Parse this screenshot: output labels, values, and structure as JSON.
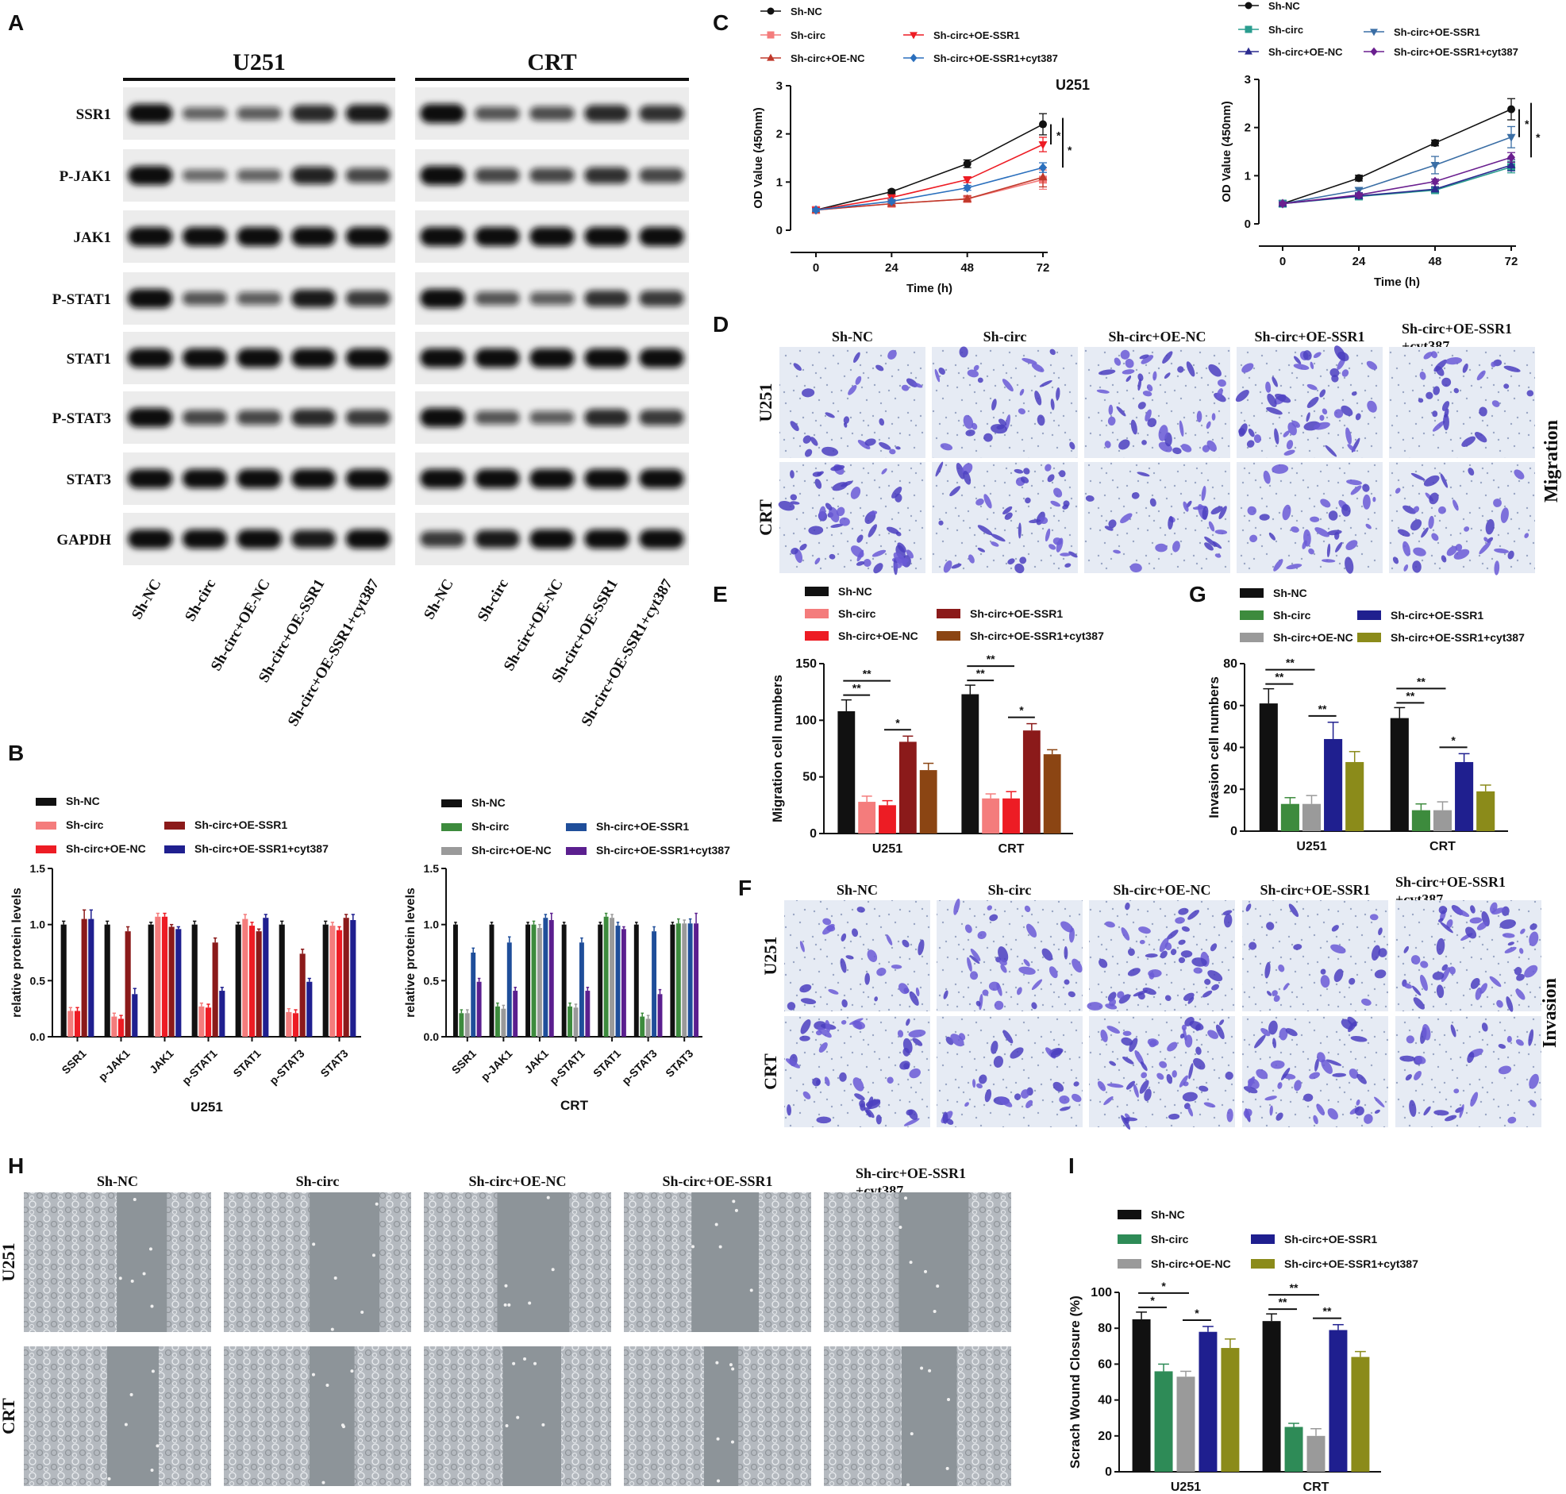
{
  "panel_letters": [
    "A",
    "B",
    "C",
    "D",
    "E",
    "F",
    "G",
    "H",
    "I"
  ],
  "colors": {
    "black": "#111111",
    "pink": "#f47c7c",
    "red": "#ed1c24",
    "darkred": "#8b1a1a",
    "navy": "#1f1f8f",
    "brown": "#8b4513",
    "green": "#3d8b3d",
    "grey": "#9a9a9a",
    "blue": "#1f4e9a",
    "purple": "#5b1f8f",
    "olive": "#8b8b1a",
    "teal": "#2a9d8f",
    "mgreen": "#2e8b57"
  },
  "blot": {
    "cell_lines": [
      "U251",
      "CRT"
    ],
    "proteins": [
      "SSR1",
      "P-JAK1",
      "JAK1",
      "P-STAT1",
      "STAT1",
      "P-STAT3",
      "STAT3",
      "GAPDH"
    ],
    "lanes": [
      "Sh-NC",
      "Sh-circ",
      "Sh-circ+OE-NC",
      "Sh-circ+OE-SSR1",
      "Sh-circ+OE-SSR1+cyt387"
    ],
    "intensity_u251": [
      [
        1,
        0.4,
        0.45,
        0.8,
        0.9
      ],
      [
        1,
        0.35,
        0.4,
        0.85,
        0.6
      ],
      [
        1,
        1,
        1,
        1,
        1
      ],
      [
        1,
        0.5,
        0.45,
        0.9,
        0.7
      ],
      [
        1,
        1,
        1,
        1,
        1
      ],
      [
        1,
        0.6,
        0.6,
        0.8,
        0.7
      ],
      [
        1,
        1,
        1,
        1,
        1
      ],
      [
        1,
        1,
        1,
        0.9,
        1
      ]
    ],
    "intensity_crt": [
      [
        1,
        0.5,
        0.55,
        0.8,
        0.75
      ],
      [
        1,
        0.6,
        0.6,
        0.75,
        0.6
      ],
      [
        1,
        1,
        1,
        1,
        1
      ],
      [
        1,
        0.5,
        0.45,
        0.75,
        0.7
      ],
      [
        1,
        1,
        1,
        1,
        1
      ],
      [
        1,
        0.5,
        0.45,
        0.8,
        0.7
      ],
      [
        1,
        1,
        1,
        1,
        1
      ],
      [
        0.7,
        0.9,
        1,
        1,
        1
      ]
    ]
  },
  "chart_data": [
    {
      "id": "B1",
      "type": "bar",
      "xlabel": "U251",
      "ylabel": "relative protein levels",
      "ylim": [
        0,
        1.5
      ],
      "yticks": [
        "0.0",
        "0.5",
        "1.0",
        "1.5"
      ],
      "categories": [
        "SSR1",
        "p-JAK1",
        "JAK1",
        "p-STAT1",
        "STAT1",
        "p-STAT3",
        "STAT3"
      ],
      "legend": [
        "Sh-NC",
        "Sh-circ",
        "Sh-circ+OE-NC",
        "Sh-circ+OE-SSR1",
        "Sh-circ+OE-SSR1+cyt387"
      ],
      "series": [
        {
          "name": "Sh-NC",
          "color": "#111111",
          "values": [
            1.0,
            1.0,
            1.0,
            1.0,
            1.0,
            1.0,
            1.0
          ],
          "err": [
            0.03,
            0.03,
            0.02,
            0.03,
            0.02,
            0.03,
            0.03
          ]
        },
        {
          "name": "Sh-circ",
          "color": "#f47c7c",
          "values": [
            0.23,
            0.18,
            1.07,
            0.27,
            1.05,
            0.22,
            0.99
          ],
          "err": [
            0.03,
            0.03,
            0.03,
            0.03,
            0.04,
            0.03,
            0.03
          ]
        },
        {
          "name": "Sh-circ+OE-NC",
          "color": "#ed1c24",
          "values": [
            0.23,
            0.16,
            1.07,
            0.26,
            0.99,
            0.21,
            0.95
          ],
          "err": [
            0.03,
            0.03,
            0.03,
            0.03,
            0.03,
            0.03,
            0.03
          ]
        },
        {
          "name": "Sh-circ+OE-SSR1",
          "color": "#8b1a1a",
          "values": [
            1.05,
            0.94,
            0.98,
            0.84,
            0.94,
            0.74,
            1.06
          ],
          "err": [
            0.08,
            0.04,
            0.02,
            0.04,
            0.02,
            0.04,
            0.03
          ]
        },
        {
          "name": "Sh-circ+OE-SSR1+cyt387",
          "color": "#1f1f8f",
          "values": [
            1.05,
            0.38,
            0.96,
            0.41,
            1.06,
            0.49,
            1.04
          ],
          "err": [
            0.08,
            0.05,
            0.02,
            0.03,
            0.03,
            0.03,
            0.05
          ]
        }
      ]
    },
    {
      "id": "B2",
      "type": "bar",
      "xlabel": "CRT",
      "ylabel": "relative protein levels",
      "ylim": [
        0,
        1.5
      ],
      "yticks": [
        "0.0",
        "0.5",
        "1.0",
        "1.5"
      ],
      "categories": [
        "SSR1",
        "p-JAK1",
        "JAK1",
        "p-STAT1",
        "STAT1",
        "p-STAT3",
        "STAT3"
      ],
      "legend": [
        "Sh-NC",
        "Sh-circ",
        "Sh-circ+OE-NC",
        "Sh-circ+OE-SSR1",
        "Sh-circ+OE-SSR1+cyt387"
      ],
      "series": [
        {
          "name": "Sh-NC",
          "color": "#111111",
          "values": [
            1.0,
            1.0,
            1.0,
            1.0,
            1.0,
            1.0,
            1.0
          ],
          "err": [
            0.02,
            0.02,
            0.02,
            0.02,
            0.02,
            0.02,
            0.02
          ]
        },
        {
          "name": "Sh-circ",
          "color": "#3d8b3d",
          "values": [
            0.21,
            0.27,
            1.0,
            0.27,
            1.07,
            0.18,
            1.01
          ],
          "err": [
            0.03,
            0.03,
            0.03,
            0.03,
            0.03,
            0.03,
            0.04
          ]
        },
        {
          "name": "Sh-circ+OE-NC",
          "color": "#9a9a9a",
          "values": [
            0.21,
            0.25,
            0.97,
            0.26,
            1.06,
            0.16,
            1.01
          ],
          "err": [
            0.03,
            0.03,
            0.03,
            0.03,
            0.03,
            0.03,
            0.03
          ]
        },
        {
          "name": "Sh-circ+OE-SSR1",
          "color": "#1f4e9a",
          "values": [
            0.75,
            0.84,
            1.06,
            0.84,
            0.99,
            0.94,
            1.01
          ],
          "err": [
            0.04,
            0.05,
            0.03,
            0.04,
            0.03,
            0.04,
            0.04
          ]
        },
        {
          "name": "Sh-circ+OE-SSR1+cyt387",
          "color": "#5b1f8f",
          "values": [
            0.49,
            0.41,
            1.04,
            0.41,
            0.96,
            0.38,
            1.01
          ],
          "err": [
            0.03,
            0.03,
            0.06,
            0.03,
            0.02,
            0.04,
            0.09
          ]
        }
      ]
    },
    {
      "id": "C1",
      "type": "line",
      "title": "U251",
      "xlabel": "Time (h)",
      "ylabel": "OD Value (450nm)",
      "x": [
        0,
        24,
        48,
        72
      ],
      "xlim": [
        0,
        72
      ],
      "ylim": [
        0,
        3
      ],
      "yticks": [
        "0",
        "1",
        "2",
        "3"
      ],
      "xticks": [
        "0",
        "24",
        "48",
        "72"
      ],
      "legend": [
        "Sh-NC",
        "Sh-circ",
        "Sh-circ+OE-NC",
        "Sh-circ+OE-SSR1",
        "Sh-circ+OE-SSR1+cyt387"
      ],
      "series": [
        {
          "name": "Sh-NC",
          "color": "#111111",
          "marker": "circle",
          "values": [
            0.42,
            0.8,
            1.38,
            2.2
          ],
          "err": [
            0.03,
            0.04,
            0.08,
            0.22
          ]
        },
        {
          "name": "Sh-circ",
          "color": "#f47c7c",
          "marker": "square",
          "values": [
            0.42,
            0.55,
            0.65,
            1.05
          ],
          "err": [
            0.03,
            0.04,
            0.06,
            0.2
          ]
        },
        {
          "name": "Sh-circ+OE-NC",
          "color": "#c0392b",
          "marker": "triangle-up",
          "values": [
            0.42,
            0.55,
            0.65,
            1.1
          ],
          "err": [
            0.03,
            0.04,
            0.06,
            0.2
          ]
        },
        {
          "name": "Sh-circ+OE-SSR1",
          "color": "#ed1c24",
          "marker": "triangle-down",
          "values": [
            0.42,
            0.68,
            1.05,
            1.78
          ],
          "err": [
            0.03,
            0.05,
            0.06,
            0.15
          ]
        },
        {
          "name": "Sh-circ+OE-SSR1+cyt387",
          "color": "#2a6fbd",
          "marker": "diamond",
          "values": [
            0.42,
            0.6,
            0.88,
            1.3
          ],
          "err": [
            0.03,
            0.04,
            0.05,
            0.1
          ]
        }
      ],
      "sig": [
        "*",
        "*"
      ]
    },
    {
      "id": "C2",
      "type": "line",
      "xlabel": "Time (h)",
      "ylabel": "OD Value (450nm)",
      "x": [
        0,
        24,
        48,
        72
      ],
      "xlim": [
        0,
        72
      ],
      "ylim": [
        0,
        3
      ],
      "yticks": [
        "0",
        "1",
        "2",
        "3"
      ],
      "xticks": [
        "0",
        "24",
        "48",
        "72"
      ],
      "legend": [
        "Sh-NC",
        "Sh-circ",
        "Sh-circ+OE-NC",
        "Sh-circ+OE-SSR1",
        "Sh-circ+OE-SSR1+cyt387"
      ],
      "series": [
        {
          "name": "Sh-NC",
          "color": "#111111",
          "marker": "circle",
          "values": [
            0.42,
            0.95,
            1.68,
            2.38
          ],
          "err": [
            0.03,
            0.06,
            0.06,
            0.22
          ]
        },
        {
          "name": "Sh-circ",
          "color": "#2a9d8f",
          "marker": "square",
          "values": [
            0.42,
            0.57,
            0.7,
            1.18
          ],
          "err": [
            0.03,
            0.04,
            0.05,
            0.12
          ]
        },
        {
          "name": "Sh-circ+OE-NC",
          "color": "#2b2b8f",
          "marker": "triangle-up",
          "values": [
            0.42,
            0.58,
            0.72,
            1.22
          ],
          "err": [
            0.03,
            0.04,
            0.05,
            0.12
          ]
        },
        {
          "name": "Sh-circ+OE-SSR1",
          "color": "#3a6ea5",
          "marker": "triangle-down",
          "values": [
            0.42,
            0.7,
            1.22,
            1.8
          ],
          "err": [
            0.03,
            0.05,
            0.18,
            0.22
          ]
        },
        {
          "name": "Sh-circ+OE-SSR1+cyt387",
          "color": "#6a1f8f",
          "marker": "diamond",
          "values": [
            0.42,
            0.6,
            0.88,
            1.38
          ],
          "err": [
            0.03,
            0.04,
            0.05,
            0.1
          ]
        }
      ],
      "sig": [
        "*",
        "*"
      ]
    },
    {
      "id": "E",
      "type": "bar",
      "ylabel": "Migration cell numbers",
      "ylim": [
        0,
        150
      ],
      "yticks": [
        "0",
        "50",
        "100",
        "150"
      ],
      "categories": [
        "U251",
        "CRT"
      ],
      "legend": [
        "Sh-NC",
        "Sh-circ",
        "Sh-circ+OE-SSR1",
        "Sh-circ+OE-NC",
        "Sh-circ+OE-SSR1+cyt387"
      ],
      "series": [
        {
          "name": "Sh-NC",
          "color": "#111111",
          "values": [
            108,
            123
          ],
          "err": [
            10,
            8
          ]
        },
        {
          "name": "Sh-circ",
          "color": "#f47c7c",
          "values": [
            28,
            31
          ],
          "err": [
            5,
            4
          ]
        },
        {
          "name": "Sh-circ+OE-NC",
          "color": "#ed1c24",
          "values": [
            25,
            31
          ],
          "err": [
            4,
            6
          ]
        },
        {
          "name": "Sh-circ+OE-SSR1",
          "color": "#8b1a1a",
          "values": [
            81,
            91
          ],
          "err": [
            5,
            6
          ]
        },
        {
          "name": "Sh-circ+OE-SSR1+cyt387",
          "color": "#8b4513",
          "values": [
            56,
            70
          ],
          "err": [
            6,
            4
          ]
        }
      ],
      "sig": [
        "**",
        "**",
        "*",
        "**",
        "**",
        "*"
      ]
    },
    {
      "id": "G",
      "type": "bar",
      "ylabel": "Invasion cell numbers",
      "ylim": [
        0,
        80
      ],
      "yticks": [
        "0",
        "20",
        "40",
        "60",
        "80"
      ],
      "categories": [
        "U251",
        "CRT"
      ],
      "legend": [
        "Sh-NC",
        "Sh-circ",
        "Sh-circ+OE-SSR1",
        "Sh-circ+OE-NC",
        "Sh-circ+OE-SSR1+cyt387"
      ],
      "series": [
        {
          "name": "Sh-NC",
          "color": "#111111",
          "values": [
            61,
            54
          ],
          "err": [
            7,
            5
          ]
        },
        {
          "name": "Sh-circ",
          "color": "#3d8b3d",
          "values": [
            13,
            10
          ],
          "err": [
            3,
            3
          ]
        },
        {
          "name": "Sh-circ+OE-NC",
          "color": "#9a9a9a",
          "values": [
            13,
            10
          ],
          "err": [
            4,
            4
          ]
        },
        {
          "name": "Sh-circ+OE-SSR1",
          "color": "#1f1f8f",
          "values": [
            44,
            33
          ],
          "err": [
            8,
            4
          ]
        },
        {
          "name": "Sh-circ+OE-SSR1+cyt387",
          "color": "#8b8b1a",
          "values": [
            33,
            19
          ],
          "err": [
            5,
            3
          ]
        }
      ],
      "sig": [
        "**",
        "**",
        "**",
        "**",
        "**",
        "*"
      ]
    },
    {
      "id": "I",
      "type": "bar",
      "ylabel": "Scrach Wound Closure (%)",
      "ylim": [
        0,
        100
      ],
      "yticks": [
        "0",
        "20",
        "40",
        "60",
        "80",
        "100"
      ],
      "categories": [
        "U251",
        "CRT"
      ],
      "legend": [
        "Sh-NC",
        "Sh-circ",
        "Sh-circ+OE-SSR1",
        "Sh-circ+OE-NC",
        "Sh-circ+OE-SSR1+cyt387"
      ],
      "series": [
        {
          "name": "Sh-NC",
          "color": "#111111",
          "values": [
            85,
            84
          ],
          "err": [
            4,
            4
          ]
        },
        {
          "name": "Sh-circ",
          "color": "#2e8b57",
          "values": [
            56,
            25
          ],
          "err": [
            4,
            2
          ]
        },
        {
          "name": "Sh-circ+OE-NC",
          "color": "#9a9a9a",
          "values": [
            53,
            20
          ],
          "err": [
            3,
            4
          ]
        },
        {
          "name": "Sh-circ+OE-SSR1",
          "color": "#1f1f8f",
          "values": [
            78,
            79
          ],
          "err": [
            3,
            3
          ]
        },
        {
          "name": "Sh-circ+OE-SSR1+cyt387",
          "color": "#8b8b1a",
          "values": [
            69,
            64
          ],
          "err": [
            5,
            3
          ]
        }
      ],
      "sig": [
        "*",
        "*",
        "*",
        "**",
        "**",
        "**"
      ]
    }
  ],
  "micro": {
    "headers": [
      "Sh-NC",
      "Sh-circ",
      "Sh-circ+OE-NC",
      "Sh-circ+OE-SSR1",
      "Sh-circ+OE-SSR1",
      "+cyt387"
    ],
    "rows": [
      "U251",
      "CRT"
    ],
    "migration_label": "Migration",
    "invasion_label": "Invasion"
  }
}
